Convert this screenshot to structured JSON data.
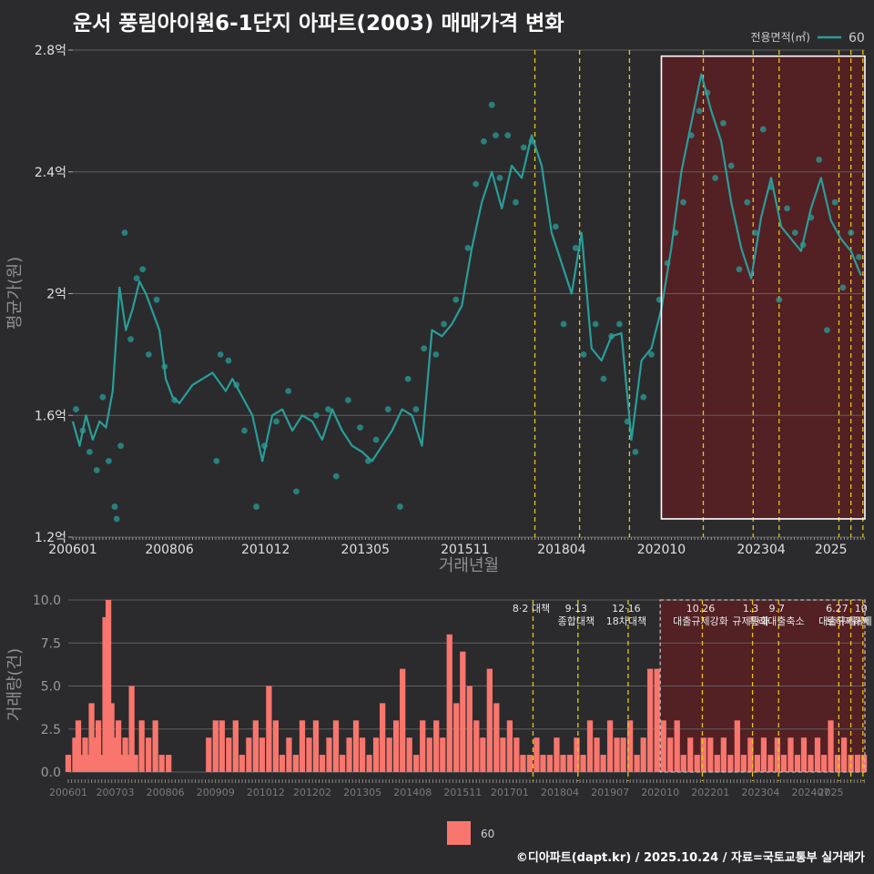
{
  "title": "운서 풍림아이원6-1단지 아파트(2003) 매매가격 변화",
  "credit": "©디아파트(dapt.kr) / 2025.10.24 / 자료=국토교통부 실거래가",
  "colors": {
    "background": "#2b2b2d",
    "line": "#2a9d98",
    "bar": "#f8766d",
    "vline": "#e6c619",
    "highlight": "#5a1f23",
    "box": "#ffffff"
  },
  "chart_data": [
    {
      "type": "line",
      "title": "운서 풍림아이원6-1단지 아파트(2003) 매매가격 변화",
      "xlabel": "거래년월",
      "ylabel": "평균가(원)",
      "xlim": [
        2006.0,
        2025.85
      ],
      "ylim": [
        1.2,
        2.8
      ],
      "y_ticks": [
        1.2,
        1.6,
        2.0,
        2.4,
        2.8
      ],
      "y_tick_labels": [
        "1.2억",
        "1.6억",
        "2억",
        "2.4억",
        "2.8억"
      ],
      "x_ticks": [
        2006.0,
        2008.42,
        2010.83,
        2013.33,
        2015.83,
        2018.25,
        2020.75,
        2023.25,
        2025.0
      ],
      "x_tick_labels": [
        "200601",
        "200806",
        "201012",
        "201305",
        "201511",
        "201804",
        "202010",
        "202304",
        "2025"
      ],
      "legend": {
        "title": "전용면적(㎡)",
        "entries": [
          "60"
        ],
        "position": "top-right"
      },
      "highlight_box": {
        "x_range": [
          2020.75,
          2025.85
        ],
        "y_range": [
          1.26,
          2.78
        ]
      },
      "policy_lines": [
        2017.58,
        2018.7,
        2019.95,
        2021.8,
        2023.05,
        2023.7,
        2025.2,
        2025.5,
        2025.8
      ],
      "series": [
        {
          "name": "60",
          "type": "line",
          "x": [
            2006.0,
            2006.17,
            2006.33,
            2006.5,
            2006.67,
            2006.83,
            2007.0,
            2007.17,
            2007.33,
            2007.5,
            2007.67,
            2007.83,
            2008.0,
            2008.17,
            2008.33,
            2008.5,
            2008.67,
            2009.0,
            2009.5,
            2009.83,
            2010.0,
            2010.25,
            2010.5,
            2010.75,
            2011.0,
            2011.25,
            2011.5,
            2011.75,
            2012.0,
            2012.25,
            2012.5,
            2012.75,
            2013.0,
            2013.25,
            2013.5,
            2013.75,
            2014.0,
            2014.25,
            2014.5,
            2014.75,
            2015.0,
            2015.25,
            2015.5,
            2015.75,
            2016.0,
            2016.25,
            2016.5,
            2016.75,
            2017.0,
            2017.25,
            2017.5,
            2017.75,
            2018.0,
            2018.25,
            2018.5,
            2018.75,
            2019.0,
            2019.25,
            2019.5,
            2019.75,
            2020.0,
            2020.25,
            2020.5,
            2020.75,
            2021.0,
            2021.25,
            2021.5,
            2021.75,
            2022.0,
            2022.25,
            2022.5,
            2022.75,
            2023.0,
            2023.25,
            2023.5,
            2023.75,
            2024.0,
            2024.25,
            2024.5,
            2024.75,
            2025.0,
            2025.25,
            2025.5,
            2025.75
          ],
          "y": [
            1.58,
            1.5,
            1.6,
            1.52,
            1.58,
            1.56,
            1.68,
            2.02,
            1.88,
            1.95,
            2.04,
            2.0,
            1.94,
            1.88,
            1.72,
            1.66,
            1.64,
            1.7,
            1.74,
            1.68,
            1.72,
            1.66,
            1.6,
            1.45,
            1.6,
            1.62,
            1.55,
            1.6,
            1.58,
            1.52,
            1.62,
            1.55,
            1.5,
            1.48,
            1.45,
            1.5,
            1.55,
            1.62,
            1.6,
            1.5,
            1.88,
            1.86,
            1.9,
            1.96,
            2.15,
            2.3,
            2.4,
            2.28,
            2.42,
            2.38,
            2.52,
            2.42,
            2.2,
            2.1,
            2.0,
            2.2,
            1.82,
            1.78,
            1.86,
            1.87,
            1.52,
            1.78,
            1.82,
            1.95,
            2.15,
            2.4,
            2.56,
            2.72,
            2.6,
            2.5,
            2.3,
            2.15,
            2.05,
            2.25,
            2.38,
            2.22,
            2.18,
            2.14,
            2.28,
            2.38,
            2.24,
            2.18,
            2.14,
            2.06
          ]
        },
        {
          "name": "60",
          "type": "scatter",
          "x": [
            2006.08,
            2006.25,
            2006.42,
            2006.6,
            2006.75,
            2006.9,
            2007.05,
            2007.1,
            2007.2,
            2007.3,
            2007.45,
            2007.6,
            2007.75,
            2007.9,
            2008.1,
            2008.3,
            2008.55,
            2009.6,
            2009.7,
            2009.9,
            2010.1,
            2010.3,
            2010.6,
            2010.8,
            2011.1,
            2011.4,
            2011.6,
            2012.1,
            2012.4,
            2012.6,
            2012.9,
            2013.2,
            2013.4,
            2013.6,
            2013.9,
            2014.2,
            2014.4,
            2014.6,
            2014.8,
            2015.1,
            2015.3,
            2015.6,
            2015.9,
            2016.1,
            2016.3,
            2016.5,
            2016.6,
            2016.7,
            2016.9,
            2017.1,
            2017.3,
            2017.5,
            2018.1,
            2018.3,
            2018.6,
            2018.8,
            2019.1,
            2019.3,
            2019.5,
            2019.7,
            2019.9,
            2020.1,
            2020.3,
            2020.5,
            2020.7,
            2020.9,
            2021.1,
            2021.3,
            2021.5,
            2021.7,
            2021.9,
            2022.1,
            2022.3,
            2022.5,
            2022.7,
            2022.9,
            2023.1,
            2023.3,
            2023.5,
            2023.7,
            2023.9,
            2024.1,
            2024.3,
            2024.5,
            2024.7,
            2024.9,
            2025.1,
            2025.3,
            2025.5,
            2025.7
          ],
          "y": [
            1.62,
            1.55,
            1.48,
            1.42,
            1.66,
            1.45,
            1.3,
            1.26,
            1.5,
            2.2,
            1.85,
            2.05,
            2.08,
            1.8,
            1.98,
            1.76,
            1.65,
            1.45,
            1.8,
            1.78,
            1.7,
            1.55,
            1.3,
            1.5,
            1.58,
            1.68,
            1.35,
            1.6,
            1.62,
            1.4,
            1.65,
            1.56,
            1.45,
            1.52,
            1.62,
            1.3,
            1.72,
            1.62,
            1.82,
            1.8,
            1.9,
            1.98,
            2.15,
            2.36,
            2.5,
            2.62,
            2.52,
            2.38,
            2.52,
            2.3,
            2.48,
            2.5,
            2.22,
            1.9,
            2.15,
            1.8,
            1.9,
            1.72,
            1.86,
            1.9,
            1.58,
            1.48,
            1.66,
            1.8,
            1.98,
            2.1,
            2.2,
            2.3,
            2.52,
            2.6,
            2.66,
            2.38,
            2.56,
            2.42,
            2.08,
            2.3,
            2.2,
            2.54,
            2.35,
            1.98,
            2.28,
            2.2,
            2.16,
            2.25,
            2.44,
            1.88,
            2.3,
            2.02,
            2.2,
            2.12
          ]
        }
      ]
    },
    {
      "type": "bar",
      "ylabel": "거래량(건)",
      "xlim": [
        2006.0,
        2025.85
      ],
      "ylim": [
        0,
        10
      ],
      "y_ticks": [
        0,
        2.5,
        5,
        7.5,
        10
      ],
      "y_tick_labels": [
        "0.0",
        "2.5",
        "5.0",
        "7.5",
        "10.0"
      ],
      "x_ticks": [
        2006.0,
        2007.17,
        2008.42,
        2009.67,
        2010.92,
        2012.08,
        2013.33,
        2014.58,
        2015.83,
        2017.0,
        2018.25,
        2019.5,
        2020.75,
        2022.0,
        2023.25,
        2024.5,
        2025.0
      ],
      "x_tick_labels": [
        "200601",
        "200703",
        "200806",
        "200909",
        "201012",
        "201202",
        "201305",
        "201408",
        "201511",
        "201701",
        "201804",
        "201907",
        "202010",
        "202201",
        "202304",
        "202407",
        "2025"
      ],
      "legend": {
        "entries": [
          "60"
        ],
        "position": "bottom"
      },
      "policy_labels": [
        {
          "x": 2017.58,
          "lines": [
            "8·2 대책"
          ]
        },
        {
          "x": 2018.7,
          "lines": [
            "9·13",
            "종합대책"
          ]
        },
        {
          "x": 2019.95,
          "lines": [
            "12·16",
            "18차대책"
          ]
        },
        {
          "x": 2021.8,
          "lines": [
            "10.26",
            "대출규제강화"
          ]
        },
        {
          "x": 2023.05,
          "lines": [
            "1.3",
            "규제완화"
          ]
        },
        {
          "x": 2023.7,
          "lines": [
            "9.7",
            "특례대출축소"
          ]
        },
        {
          "x": 2025.2,
          "lines": [
            "6.27",
            "대출규제"
          ]
        },
        {
          "x": 2025.5,
          "lines": [
            "",
            "토허제해제"
          ]
        },
        {
          "x": 2025.8,
          "lines": [
            "10",
            "규제"
          ]
        }
      ],
      "policy_lines": [
        2017.58,
        2018.7,
        2019.95,
        2021.8,
        2023.05,
        2023.7,
        2025.2,
        2025.5,
        2025.8
      ],
      "series": [
        {
          "name": "60",
          "x": [
            2006.0,
            2006.17,
            2006.25,
            2006.33,
            2006.42,
            2006.5,
            2006.58,
            2006.67,
            2006.75,
            2006.83,
            2006.92,
            2007.0,
            2007.08,
            2007.17,
            2007.25,
            2007.33,
            2007.42,
            2007.5,
            2007.58,
            2007.67,
            2007.83,
            2008.0,
            2008.17,
            2008.33,
            2008.5,
            2009.5,
            2009.67,
            2009.83,
            2010.0,
            2010.17,
            2010.33,
            2010.5,
            2010.67,
            2010.83,
            2011.0,
            2011.17,
            2011.33,
            2011.5,
            2011.67,
            2011.83,
            2012.0,
            2012.17,
            2012.33,
            2012.5,
            2012.67,
            2012.83,
            2013.0,
            2013.17,
            2013.33,
            2013.5,
            2013.67,
            2013.83,
            2014.0,
            2014.17,
            2014.33,
            2014.5,
            2014.67,
            2014.83,
            2015.0,
            2015.17,
            2015.33,
            2015.5,
            2015.67,
            2015.83,
            2016.0,
            2016.17,
            2016.33,
            2016.5,
            2016.67,
            2016.83,
            2017.0,
            2017.17,
            2017.33,
            2017.5,
            2017.67,
            2017.83,
            2018.0,
            2018.17,
            2018.33,
            2018.5,
            2018.67,
            2018.83,
            2019.0,
            2019.17,
            2019.33,
            2019.5,
            2019.67,
            2019.83,
            2020.0,
            2020.17,
            2020.33,
            2020.5,
            2020.67,
            2020.83,
            2021.0,
            2021.17,
            2021.33,
            2021.5,
            2021.67,
            2021.83,
            2022.0,
            2022.17,
            2022.33,
            2022.5,
            2022.67,
            2022.83,
            2023.0,
            2023.17,
            2023.33,
            2023.5,
            2023.67,
            2023.83,
            2024.0,
            2024.17,
            2024.33,
            2024.5,
            2024.67,
            2024.83,
            2025.0,
            2025.17,
            2025.33,
            2025.5,
            2025.67,
            2025.83
          ],
          "values": [
            1,
            2,
            3,
            1,
            2,
            1,
            4,
            2,
            3,
            1,
            9,
            10,
            4,
            2,
            3,
            1,
            2,
            1,
            5,
            1,
            3,
            2,
            3,
            1,
            1,
            2,
            3,
            3,
            2,
            3,
            1,
            2,
            3,
            2,
            5,
            3,
            1,
            2,
            1,
            3,
            2,
            3,
            1,
            2,
            3,
            1,
            2,
            3,
            2,
            1,
            2,
            4,
            2,
            3,
            6,
            2,
            1,
            3,
            2,
            3,
            2,
            8,
            4,
            7,
            5,
            3,
            2,
            6,
            4,
            2,
            3,
            2,
            1,
            1,
            2,
            1,
            1,
            2,
            1,
            1,
            2,
            1,
            3,
            2,
            1,
            3,
            2,
            2,
            3,
            1,
            2,
            6,
            6,
            3,
            2,
            3,
            1,
            2,
            1,
            2,
            2,
            1,
            2,
            1,
            3,
            1,
            2,
            1,
            2,
            1,
            2,
            1,
            2,
            1,
            2,
            1,
            2,
            1,
            3,
            1,
            2,
            1,
            1,
            1
          ]
        }
      ]
    }
  ]
}
